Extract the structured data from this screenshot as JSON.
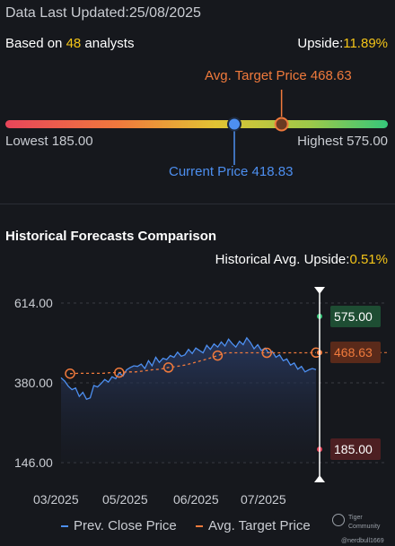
{
  "header": {
    "updated_label": "Data Last Updated:",
    "updated_date": "25/08/2025",
    "based_prefix": "Based on ",
    "analyst_count": "48",
    "based_suffix": " analysts",
    "upside_label": "Upside:",
    "upside_value": "11.89%"
  },
  "range": {
    "avg_target_label": "Avg. Target Price 468.63",
    "lowest_label": "Lowest 185.00",
    "highest_label": "Highest 575.00",
    "current_label": "Current Price 418.83",
    "low": 185.0,
    "high": 575.0,
    "current": 418.83,
    "avg_target": 468.63
  },
  "historical": {
    "title": "Historical Forecasts Comparison",
    "upside_label": "Historical Avg. Upside:",
    "upside_value": "0.51%",
    "tags": {
      "high": "575.00",
      "avg": "468.63",
      "low": "185.00"
    }
  },
  "legend": {
    "prev_close": "Prev. Close Price",
    "avg_target": "Avg. Target Price"
  },
  "watermark": {
    "brand": "Tiger Community",
    "user": "@nerdbull1669"
  },
  "colors": {
    "price_line": "#4d8ff0",
    "target_line": "#f07a3c",
    "high_tag": "#1e4d33",
    "avg_tag": "#5a2a1a",
    "low_tag": "#4d1f22"
  },
  "chart_data": {
    "type": "line",
    "title": "Historical Forecasts Comparison",
    "ylim": [
      146.0,
      614.0
    ],
    "y_ticks": [
      "614.00",
      "380.00",
      "146.00"
    ],
    "x_ticks": [
      "03/2025",
      "05/2025",
      "06/2025",
      "07/2025"
    ],
    "series": [
      {
        "name": "Prev. Close Price",
        "values": [
          395,
          385,
          370,
          360,
          365,
          340,
          352,
          332,
          336,
          372,
          368,
          378,
          390,
          382,
          398,
          392,
          410,
          400,
          418,
          425,
          430,
          428,
          435,
          422,
          445,
          430,
          455,
          440,
          452,
          448,
          460,
          455,
          470,
          458,
          462,
          478,
          466,
          482,
          475,
          468,
          490,
          478,
          494,
          485,
          500,
          488,
          508,
          495,
          485,
          502,
          492,
          512,
          498,
          480,
          492,
          475,
          482,
          468,
          472,
          455,
          462,
          445,
          450,
          432,
          438,
          420,
          428,
          412,
          418,
          422,
          418.83
        ]
      },
      {
        "name": "Avg. Target Price",
        "values": [
          407,
          408,
          408,
          408,
          408,
          410,
          410,
          412,
          412,
          415,
          418,
          420,
          425,
          428,
          432,
          438,
          445,
          452,
          460,
          468,
          468,
          468,
          468,
          468,
          468,
          468,
          468,
          468,
          468,
          468,
          468.63
        ]
      }
    ],
    "highest": 575.0,
    "lowest": 185.0,
    "avg_target": 468.63
  }
}
